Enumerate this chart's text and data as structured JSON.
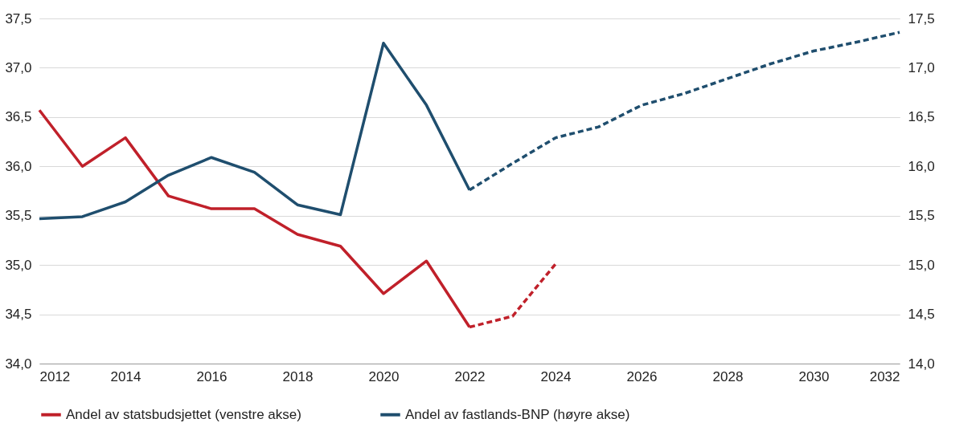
{
  "chart_data": {
    "type": "line",
    "x": [
      2012,
      2013,
      2014,
      2015,
      2016,
      2017,
      2018,
      2019,
      2020,
      2021,
      2022,
      2023,
      2024,
      2025,
      2026,
      2027,
      2028,
      2029,
      2030,
      2031,
      2032
    ],
    "xlim": [
      2012,
      2032
    ],
    "xticks": [
      2012,
      2014,
      2016,
      2018,
      2020,
      2022,
      2024,
      2026,
      2028,
      2030,
      2032
    ],
    "ylim": [
      34,
      37.5
    ],
    "yticks": [
      {
        "value": 34,
        "label": "34,0"
      },
      {
        "value": 34.5,
        "label": "34,5"
      },
      {
        "value": 35,
        "label": "35,0"
      },
      {
        "value": 35.5,
        "label": "35,5"
      },
      {
        "value": 36,
        "label": "36,0"
      },
      {
        "value": 36.5,
        "label": "36,5"
      },
      {
        "value": 37,
        "label": "37,0"
      },
      {
        "value": 37.5,
        "label": "37,5"
      }
    ],
    "y2lim": [
      14,
      17.5
    ],
    "y2ticks": [
      {
        "value": 14,
        "label": "14,0"
      },
      {
        "value": 14.5,
        "label": "14,5"
      },
      {
        "value": 15,
        "label": "15,0"
      },
      {
        "value": 15.5,
        "label": "15,5"
      },
      {
        "value": 16,
        "label": "16,0"
      },
      {
        "value": 16.5,
        "label": "16,5"
      },
      {
        "value": 17,
        "label": "17,0"
      },
      {
        "value": 17.5,
        "label": "17,5"
      }
    ],
    "grid": "y",
    "legend": "bottom",
    "marker": "none",
    "series": [
      {
        "name": "Andel av statsbudsjettet (venstre akse)",
        "color": "#c0202a",
        "line_style": "solid",
        "values": [
          36.57,
          36.0,
          36.29,
          35.7,
          35.57,
          35.57,
          35.31,
          35.19,
          34.71,
          35.04,
          34.37,
          null,
          null,
          null,
          null,
          null,
          null,
          null,
          null,
          null,
          null
        ]
      },
      {
        "color": "#c0202a",
        "line_style": "dashed",
        "values": [
          null,
          null,
          null,
          null,
          null,
          null,
          null,
          null,
          null,
          null,
          34.37,
          34.48,
          35.01,
          null,
          null,
          null,
          null,
          null,
          null,
          null,
          null
        ]
      },
      {
        "name": "Andel av fastlands-BNP (høyre akse)",
        "color": "#1f4e6e",
        "axis": "y2",
        "line_style": "solid",
        "values": [
          15.47,
          15.49,
          15.64,
          15.91,
          16.09,
          15.94,
          15.61,
          15.51,
          17.25,
          16.62,
          15.76,
          null,
          null,
          null,
          null,
          null,
          null,
          null,
          null,
          null,
          null
        ]
      },
      {
        "color": "#1f4e6e",
        "axis": "y2",
        "line_style": "dashed",
        "values": [
          null,
          null,
          null,
          null,
          null,
          null,
          null,
          null,
          null,
          null,
          15.76,
          16.03,
          16.29,
          16.4,
          16.62,
          16.74,
          16.89,
          17.04,
          17.17,
          17.26,
          17.36
        ]
      }
    ]
  }
}
